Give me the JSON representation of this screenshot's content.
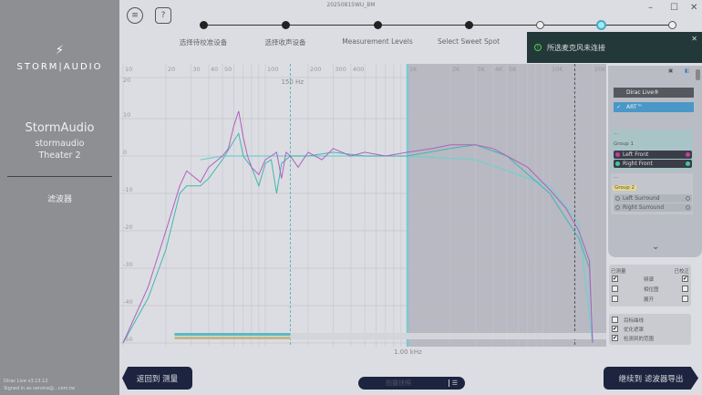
{
  "window": {
    "title": "20250815WU_BM",
    "minimize": "–",
    "maximize": "☐",
    "close": "✕"
  },
  "sidebar": {
    "logo_text": "STORM|AUDIO",
    "device_name": "StormAudio",
    "device_user": "stormaudio",
    "device_room": "Theater 2",
    "nav_item": "滤波器",
    "version": "Dirac Live v3.13.12",
    "signed_in": "Signed in as service@...com.tw"
  },
  "header": {
    "menu_icon": "≡",
    "help_label": "?"
  },
  "steps": [
    {
      "label": "选择待校准设备",
      "state": "done"
    },
    {
      "label": "选择收声设备",
      "state": "done"
    },
    {
      "label": "Measurement Levels",
      "state": "done"
    },
    {
      "label": "Select Sweet Spot",
      "state": "done"
    },
    {
      "label": "",
      "state": "open"
    },
    {
      "label": "",
      "state": "current"
    },
    {
      "label": "",
      "state": "open"
    }
  ],
  "toast": {
    "message": "所选麦克风未连接",
    "close": "✕"
  },
  "chart": {
    "x_ticks": [
      "10",
      "20",
      "30",
      "40",
      "50",
      "100",
      "200",
      "300",
      "400",
      "1K",
      "2K",
      "3K",
      "4K",
      "5K",
      "10K",
      "20K"
    ],
    "y_ticks": [
      "20",
      "10",
      "0",
      "-10",
      "-20",
      "-30",
      "-40",
      "-50"
    ],
    "marker_label": "150 Hz",
    "x_cursor_label": "1.00 kHz",
    "x_scale": "log",
    "colors": {
      "left": "#b060c0",
      "right": "#40b8b0",
      "target": "#70d0d0"
    },
    "series": {
      "left": [
        [
          10,
          -50
        ],
        [
          15,
          -35
        ],
        [
          20,
          -20
        ],
        [
          25,
          -8
        ],
        [
          28,
          -4
        ],
        [
          35,
          -7
        ],
        [
          40,
          -3
        ],
        [
          50,
          0
        ],
        [
          55,
          2
        ],
        [
          60,
          8
        ],
        [
          65,
          12
        ],
        [
          70,
          5
        ],
        [
          75,
          0
        ],
        [
          80,
          -3
        ],
        [
          90,
          -5
        ],
        [
          100,
          -1
        ],
        [
          110,
          0
        ],
        [
          120,
          1
        ],
        [
          130,
          -6
        ],
        [
          140,
          1
        ],
        [
          150,
          0
        ],
        [
          170,
          -3
        ],
        [
          200,
          1
        ],
        [
          250,
          -1
        ],
        [
          300,
          2
        ],
        [
          400,
          0
        ],
        [
          500,
          1
        ],
        [
          700,
          0
        ],
        [
          1000,
          1
        ],
        [
          1500,
          2
        ],
        [
          2000,
          3
        ],
        [
          3000,
          3
        ],
        [
          4000,
          2
        ],
        [
          5000,
          0
        ],
        [
          7000,
          -3
        ],
        [
          10000,
          -9
        ],
        [
          13000,
          -14
        ],
        [
          16000,
          -20
        ],
        [
          19000,
          -28
        ],
        [
          20000,
          -50
        ]
      ],
      "right": [
        [
          10,
          -50
        ],
        [
          15,
          -38
        ],
        [
          20,
          -25
        ],
        [
          25,
          -10
        ],
        [
          28,
          -8
        ],
        [
          35,
          -8
        ],
        [
          40,
          -6
        ],
        [
          50,
          -1
        ],
        [
          60,
          4
        ],
        [
          65,
          6
        ],
        [
          70,
          0
        ],
        [
          80,
          -3
        ],
        [
          90,
          -8
        ],
        [
          100,
          -2
        ],
        [
          110,
          -1
        ],
        [
          120,
          -10
        ],
        [
          130,
          -2
        ],
        [
          150,
          0
        ],
        [
          200,
          0
        ],
        [
          300,
          1
        ],
        [
          500,
          0
        ],
        [
          1000,
          0
        ],
        [
          2000,
          2
        ],
        [
          3000,
          3
        ],
        [
          5000,
          0
        ],
        [
          10000,
          -10
        ],
        [
          16000,
          -22
        ],
        [
          19000,
          -30
        ],
        [
          20000,
          -50
        ]
      ],
      "target": [
        [
          35,
          -1
        ],
        [
          50,
          0
        ],
        [
          100,
          0
        ],
        [
          300,
          0
        ],
        [
          1000,
          0
        ],
        [
          3000,
          -1
        ],
        [
          10000,
          -8
        ],
        [
          16000,
          -18
        ],
        [
          20000,
          -50
        ]
      ]
    }
  },
  "panel": {
    "options": [
      {
        "label": "Dirac Live®",
        "selected": false
      },
      {
        "label": "ART™",
        "selected": true
      }
    ],
    "groups": [
      {
        "name": "Group 1",
        "channels": [
          {
            "label": "Left Front",
            "color": "#c040a0"
          },
          {
            "label": "Right Front",
            "color": "#40c8a0"
          }
        ]
      },
      {
        "name": "Group 2",
        "channels": [
          {
            "label": "Left Surround"
          },
          {
            "label": "Right Surround"
          }
        ]
      }
    ],
    "measured_label": "已测量",
    "corrected_label": "已校正",
    "view_rows": [
      {
        "label": "频谱",
        "measured": true,
        "corrected": true
      },
      {
        "label": "相位图",
        "measured": false,
        "corrected": false
      },
      {
        "label": "展开",
        "measured": false,
        "corrected": false
      }
    ],
    "overlays": [
      {
        "label": "目标曲线",
        "checked": false
      },
      {
        "label": "优化遮罩",
        "checked": true
      },
      {
        "label": "检测到的范围",
        "checked": true
      }
    ]
  },
  "footer": {
    "back": "返回到 测量",
    "snapshot": "拍摄快照",
    "next": "继续到 滤波器导出"
  }
}
